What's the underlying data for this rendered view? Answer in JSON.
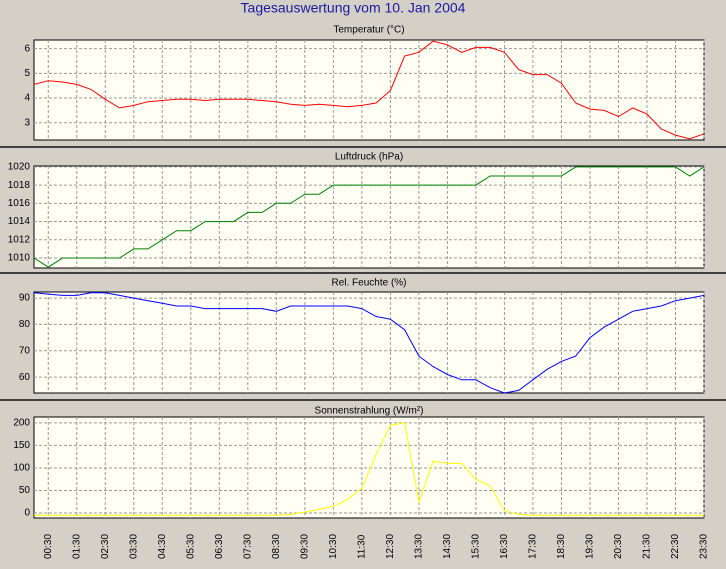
{
  "title": "Tagesauswertung vom 10. Jan 2004",
  "chart_data": [
    {
      "type": "line",
      "title": "Temperatur (°C)",
      "ylim": [
        2.3,
        6.35
      ],
      "yticks": [
        3,
        4,
        5,
        6
      ],
      "grid": true,
      "series": [
        {
          "color": "#ff0000",
          "values": [
            4.55,
            4.7,
            4.65,
            4.55,
            4.35,
            3.95,
            3.6,
            3.7,
            3.85,
            3.9,
            3.95,
            3.95,
            3.9,
            3.95,
            3.95,
            3.95,
            3.9,
            3.85,
            3.75,
            3.7,
            3.75,
            3.7,
            3.65,
            3.7,
            3.8,
            4.3,
            5.7,
            5.85,
            6.3,
            6.15,
            5.85,
            6.05,
            6.05,
            5.85,
            5.15,
            4.95,
            4.95,
            4.6,
            3.8,
            3.55,
            3.5,
            3.25,
            3.6,
            3.35,
            2.75,
            2.5,
            2.35,
            2.55
          ]
        }
      ]
    },
    {
      "type": "line",
      "title": "Luftdruck (hPa)",
      "ylim": [
        1008.9,
        1020.1
      ],
      "yticks": [
        1010,
        1012,
        1014,
        1016,
        1018,
        1020
      ],
      "grid": true,
      "series": [
        {
          "color": "#008000",
          "values": [
            1010,
            1009,
            1010,
            1010,
            1010,
            1010,
            1010,
            1011,
            1011,
            1012,
            1013,
            1013,
            1014,
            1014,
            1014,
            1015,
            1015,
            1016,
            1016,
            1017,
            1017,
            1018,
            1018,
            1018,
            1018,
            1018,
            1018,
            1018,
            1018,
            1018,
            1018,
            1018,
            1019,
            1019,
            1019,
            1019,
            1019,
            1019,
            1020,
            1020,
            1020,
            1020,
            1020,
            1020,
            1020,
            1020,
            1019,
            1020
          ]
        }
      ]
    },
    {
      "type": "line",
      "title": "Rel. Feuchte (%)",
      "ylim": [
        54,
        92.3
      ],
      "yticks": [
        60,
        70,
        80,
        90
      ],
      "grid": true,
      "series": [
        {
          "color": "#0000ff",
          "values": [
            92,
            91.5,
            91,
            91,
            92,
            92,
            91,
            90,
            89,
            88,
            87,
            87,
            86,
            86,
            86,
            86,
            86,
            85,
            87,
            87,
            87,
            87,
            87,
            86,
            83,
            82,
            78,
            68,
            64,
            61,
            59,
            59,
            56,
            54,
            55,
            59,
            63,
            66,
            68,
            75,
            79,
            82,
            85,
            86,
            87,
            89,
            90,
            91
          ]
        }
      ]
    },
    {
      "type": "line",
      "title": "Sonnenstrahlung (W/m²)",
      "ylim": [
        -11,
        213
      ],
      "yticks": [
        0,
        50,
        100,
        150,
        200
      ],
      "grid": true,
      "categories": [
        null,
        "00:30",
        null,
        "01:30",
        null,
        "02:30",
        null,
        "03:30",
        null,
        "04:30",
        null,
        "05:30",
        null,
        "06:30",
        null,
        "07:30",
        null,
        "08:30",
        null,
        "09:30",
        null,
        "10:30",
        null,
        "11:30",
        null,
        "12:30",
        null,
        "13:30",
        null,
        "14:30",
        null,
        "15:30",
        null,
        "16:30",
        null,
        "17:30",
        null,
        "18:30",
        null,
        "19:30",
        null,
        "20:30",
        null,
        "21:30",
        null,
        "22:30",
        null,
        "23:30"
      ],
      "series": [
        {
          "color": "#ffff00",
          "values": [
            -5,
            -5,
            -5,
            -5,
            -5,
            -5,
            -5,
            -5,
            -5,
            -5,
            -5,
            -5,
            -5,
            -5,
            -5,
            -5,
            -5,
            -5,
            -3,
            2,
            8,
            15,
            30,
            55,
            130,
            195,
            200,
            25,
            115,
            110,
            110,
            75,
            60,
            5,
            -3,
            -5,
            -5,
            -5,
            -5,
            -5,
            -5,
            -5,
            -5,
            -5,
            -5,
            -5,
            -5,
            -5
          ]
        }
      ]
    }
  ]
}
